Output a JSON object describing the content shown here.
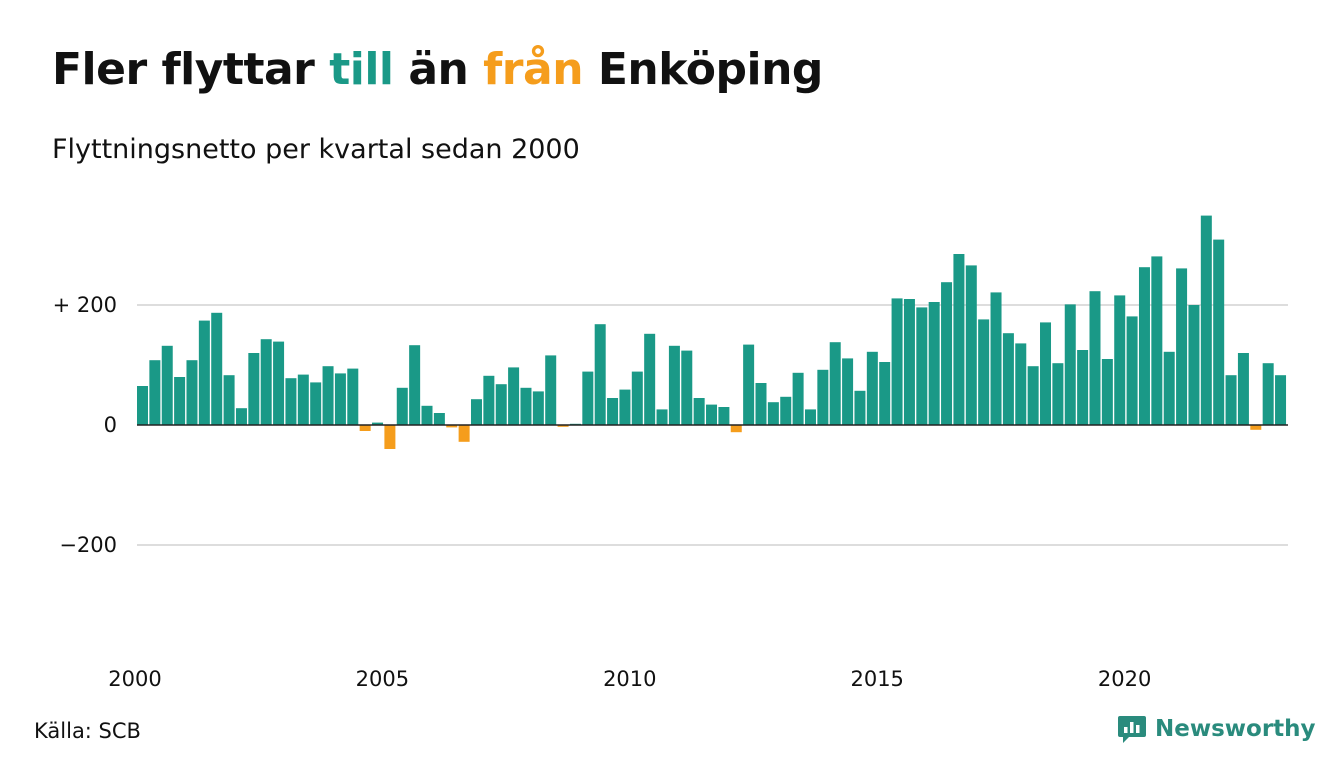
{
  "title": {
    "part1": "Fler flyttar",
    "part2": "till",
    "part3": "än",
    "part4": "från",
    "part5": "Enköping"
  },
  "subtitle": "Flyttningsnetto per kvartal sedan 2000",
  "source": "Källa: SCB",
  "brand": "Newsworthy",
  "colors": {
    "positive": "#1a9987",
    "negative": "#f59d1c",
    "highlight_till": "#1a9987",
    "highlight_fran": "#f59d1c",
    "grid": "#dddddd",
    "brand": "#2a8b7d"
  },
  "chart_data": {
    "type": "bar",
    "title": "Fler flyttar till än från Enköping",
    "subtitle": "Flyttningsnetto per kvartal sedan 2000",
    "xlabel": "",
    "ylabel": "",
    "x_start": "2000 Q1",
    "frequency": "quarter",
    "ylim": [
      -350,
      350
    ],
    "yticks": [
      {
        "value": 200,
        "label": "+ 200"
      },
      {
        "value": 0,
        "label": "0"
      },
      {
        "value": -200,
        "label": "−200"
      }
    ],
    "xticks": [
      "2000",
      "2005",
      "2010",
      "2015",
      "2020"
    ],
    "grid": true,
    "legend": "none",
    "values": [
      65,
      108,
      132,
      80,
      108,
      174,
      187,
      83,
      28,
      120,
      143,
      139,
      78,
      84,
      71,
      98,
      86,
      94,
      -10,
      4,
      -40,
      62,
      133,
      32,
      20,
      -4,
      -28,
      43,
      82,
      68,
      96,
      62,
      56,
      116,
      -3,
      2,
      89,
      168,
      45,
      59,
      89,
      152,
      26,
      132,
      124,
      45,
      34,
      30,
      -12,
      134,
      70,
      38,
      47,
      87,
      26,
      92,
      138,
      111,
      57,
      122,
      105,
      211,
      210,
      196,
      205,
      238,
      285,
      266,
      176,
      221,
      153,
      136,
      98,
      171,
      103,
      201,
      125,
      223,
      110,
      216,
      181,
      263,
      281,
      122,
      261,
      200,
      349,
      309,
      83,
      120,
      -8,
      103,
      83
    ]
  }
}
